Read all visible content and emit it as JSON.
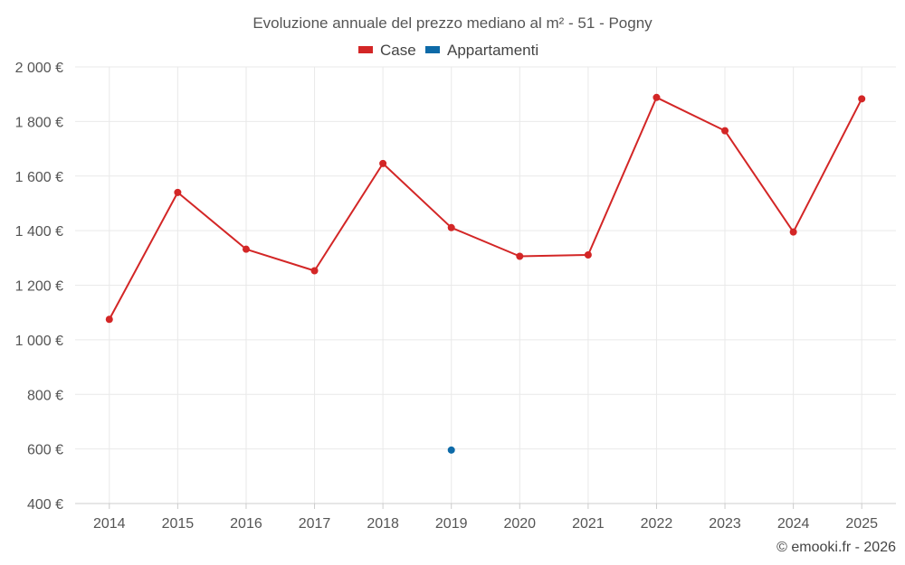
{
  "chart_data": {
    "type": "line",
    "title": "Evoluzione annuale del prezzo mediano al m² - 51 - Pogny",
    "categories": [
      "2014",
      "2015",
      "2016",
      "2017",
      "2018",
      "2019",
      "2020",
      "2021",
      "2022",
      "2023",
      "2024",
      "2025"
    ],
    "ylim": [
      400,
      2000
    ],
    "yticks": [
      400,
      600,
      800,
      1000,
      1200,
      1400,
      1600,
      1800,
      2000
    ],
    "ytick_labels": [
      "400 €",
      "600 €",
      "800 €",
      "1 000 €",
      "1 200 €",
      "1 400 €",
      "1 600 €",
      "1 800 €",
      "2 000 €"
    ],
    "grid": true,
    "legend_position": "top-center",
    "series": [
      {
        "name": "Case",
        "color": "#d32626",
        "values": [
          1075,
          1540,
          1332,
          1253,
          1646,
          1411,
          1306,
          1311,
          1888,
          1766,
          1395,
          1883
        ]
      },
      {
        "name": "Appartamenti",
        "color": "#0d6aa8",
        "values": [
          null,
          null,
          null,
          null,
          null,
          596,
          null,
          null,
          null,
          null,
          null,
          null
        ]
      }
    ]
  },
  "credit": "© emooki.fr - 2026"
}
